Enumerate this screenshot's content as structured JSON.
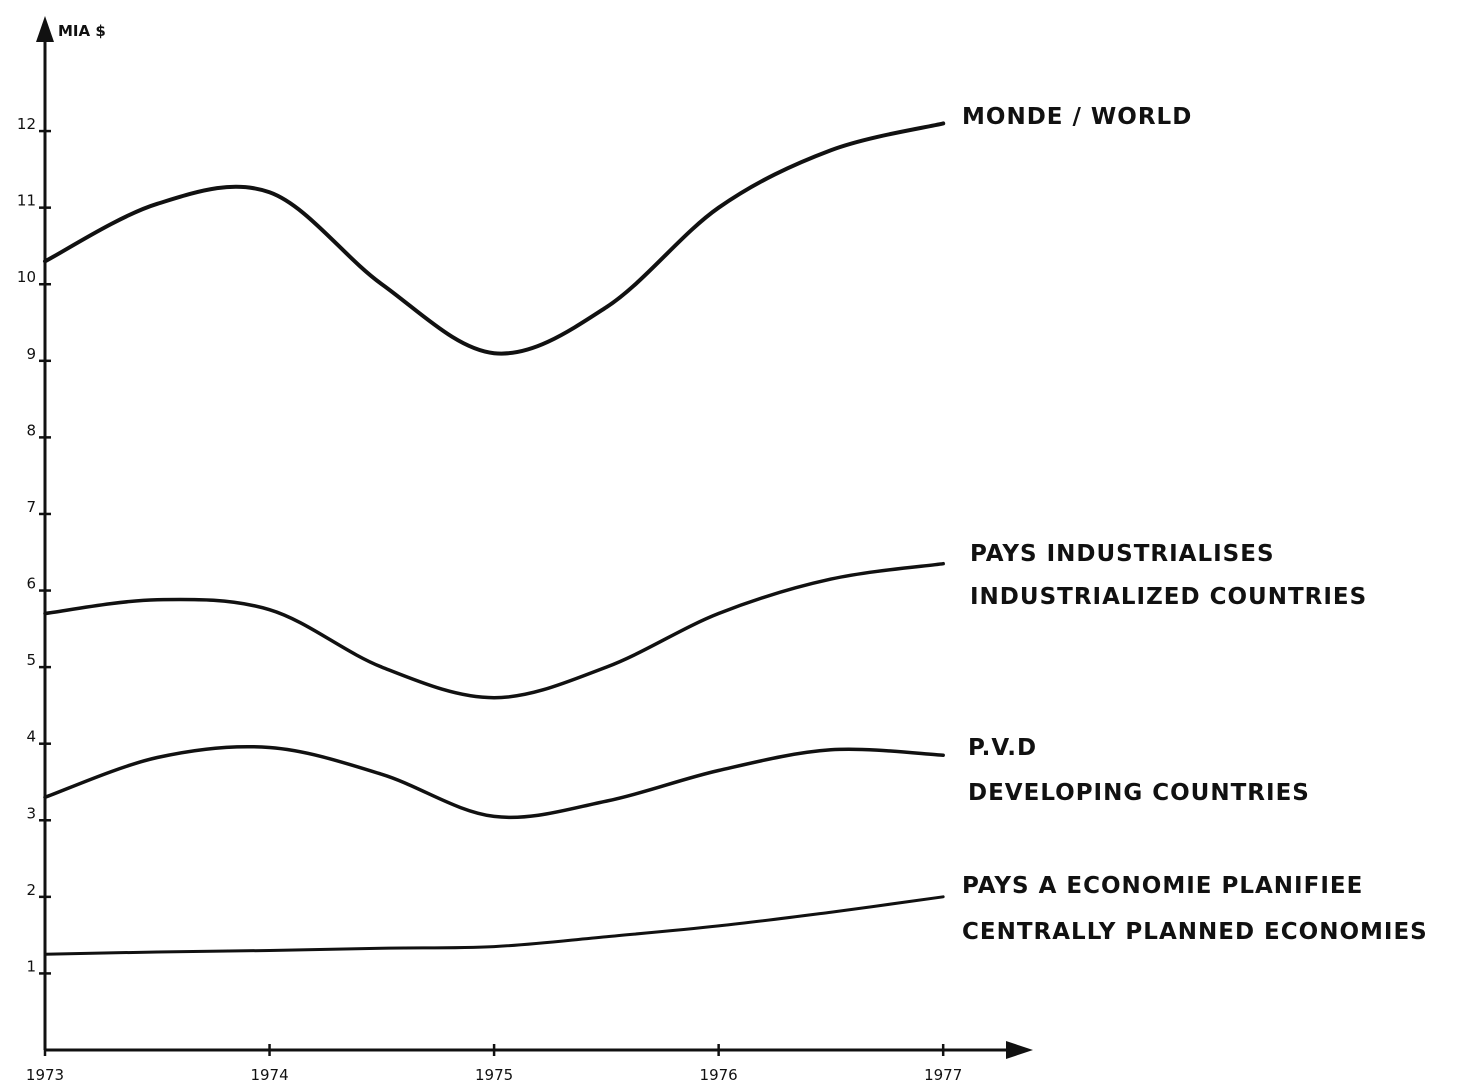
{
  "chart_data": {
    "type": "line",
    "title": "",
    "xlabel": "",
    "ylabel": "MIA $",
    "x": [
      1973,
      1973.5,
      1974,
      1974.5,
      1975,
      1975.5,
      1976,
      1976.5,
      1977
    ],
    "xticks": [
      "1973",
      "1974",
      "1975",
      "1976",
      "1977"
    ],
    "xtick_values": [
      1973,
      1974,
      1975,
      1976,
      1977
    ],
    "yticks": [
      "1",
      "2",
      "3",
      "4",
      "5",
      "6",
      "7",
      "8",
      "9",
      "10",
      "11",
      "12"
    ],
    "ytick_values": [
      1,
      2,
      3,
      4,
      5,
      6,
      7,
      8,
      9,
      10,
      11,
      12
    ],
    "xlim": [
      1973,
      1977.4
    ],
    "ylim": [
      0,
      13
    ],
    "grid": false,
    "legend": "right-end labels",
    "series": [
      {
        "name": "MONDE / WORLD",
        "label_lines": [
          "MONDE / WORLD"
        ],
        "values": [
          10.3,
          11.05,
          11.2,
          10.0,
          9.1,
          9.7,
          11.0,
          11.75,
          12.1
        ],
        "stroke_width": 4
      },
      {
        "name": "PAYS INDUSTRIALISES INDUSTRIALIZED COUNTRIES",
        "label_lines": [
          "PAYS INDUSTRIALISES",
          "INDUSTRIALIZED COUNTRIES"
        ],
        "values": [
          5.7,
          5.88,
          5.75,
          5.0,
          4.6,
          5.0,
          5.7,
          6.15,
          6.35
        ],
        "stroke_width": 3.5
      },
      {
        "name": "P.V.D DEVELOPING COUNTRIES",
        "label_lines": [
          "P.V.D",
          "DEVELOPING COUNTRIES"
        ],
        "values": [
          3.3,
          3.82,
          3.95,
          3.6,
          3.05,
          3.25,
          3.65,
          3.92,
          3.85
        ],
        "stroke_width": 3.5
      },
      {
        "name": "PAYS A ECONOMIE PLANIFIEE CENTRALLY PLANNED ECONOMIES",
        "label_lines": [
          "PAYS A ECONOMIE PLANIFIEE",
          "CENTRALLY PLANNED ECONOMIES"
        ],
        "values": [
          1.25,
          1.28,
          1.3,
          1.33,
          1.35,
          1.48,
          1.62,
          1.8,
          2.0
        ],
        "stroke_width": 3
      }
    ]
  }
}
